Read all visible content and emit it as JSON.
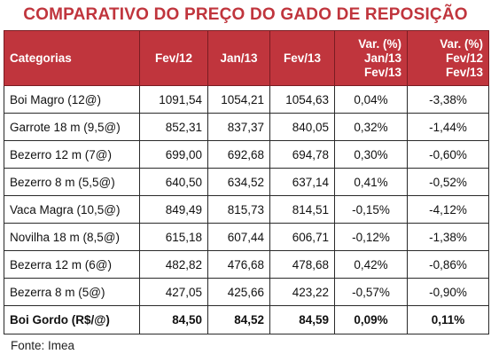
{
  "title": "COMPARATIVO DO PREÇO DO GADO DE REPOSIÇÃO",
  "table": {
    "headers": [
      [
        "Categorias"
      ],
      [
        "Fev/12"
      ],
      [
        "Jan/13"
      ],
      [
        "Fev/13"
      ],
      [
        "Var. (%)",
        "Jan/13",
        "Fev/13"
      ],
      [
        "Var. (%)",
        "Fev/12",
        "Fev/13"
      ]
    ],
    "rows": [
      [
        "Boi Magro (12@)",
        "1091,54",
        "1054,21",
        "1054,63",
        "0,04%",
        "-3,38%"
      ],
      [
        "Garrote 18 m (9,5@)",
        "852,31",
        "837,37",
        "840,05",
        "0,32%",
        "-1,44%"
      ],
      [
        "Bezerro 12 m (7@)",
        "699,00",
        "692,68",
        "694,78",
        "0,30%",
        "-0,60%"
      ],
      [
        "Bezerro 8 m (5,5@)",
        "640,50",
        "634,52",
        "637,14",
        "0,41%",
        "-0,52%"
      ],
      [
        "Vaca Magra (10,5@)",
        "849,49",
        "815,73",
        "814,51",
        "-0,15%",
        "-4,12%"
      ],
      [
        "Novilha 18 m (8,5@)",
        "615,18",
        "607,44",
        "606,71",
        "-0,12%",
        "-1,38%"
      ],
      [
        "Bezerra 12 m (6@)",
        "482,82",
        "476,68",
        "478,68",
        "0,42%",
        "-0,86%"
      ],
      [
        "Bezerra 8 m (5@)",
        "427,05",
        "425,66",
        "423,22",
        "-0,57%",
        "-0,90%"
      ],
      [
        "Boi Gordo (R$/@)",
        "84,50",
        "84,52",
        "84,59",
        "0,09%",
        "0,11%"
      ]
    ]
  },
  "source": "Fonte: Imea",
  "colors": {
    "accent": "#c0353d",
    "header_text": "#ffffff",
    "border": "#2a2a2a"
  }
}
